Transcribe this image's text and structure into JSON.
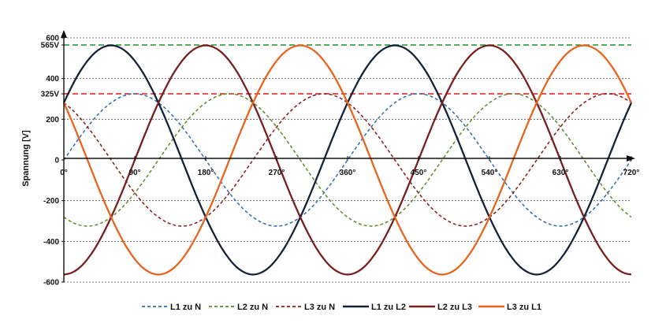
{
  "chart_data": {
    "type": "line",
    "title": "",
    "xlabel": "",
    "ylabel": "Spannung [V]",
    "x": [
      0,
      10,
      20,
      30,
      40,
      50,
      60,
      70,
      80,
      90,
      100,
      110,
      120,
      130,
      140,
      150,
      160,
      170,
      180,
      190,
      200,
      210,
      220,
      230,
      240,
      250,
      260,
      270,
      280,
      290,
      300,
      310,
      320,
      330,
      340,
      350,
      360,
      370,
      380,
      390,
      400,
      410,
      420,
      430,
      440,
      450,
      460,
      470,
      480,
      490,
      500,
      510,
      520,
      530,
      540,
      550,
      560,
      570,
      580,
      590,
      600,
      610,
      620,
      630,
      640,
      650,
      660,
      670,
      680,
      690,
      700,
      710,
      720
    ],
    "xlim": [
      0,
      720
    ],
    "ylim": [
      -600,
      600
    ],
    "x_ticks": [
      {
        "value": 0,
        "label": "0°"
      },
      {
        "value": 90,
        "label": "90°"
      },
      {
        "value": 180,
        "label": "180°"
      },
      {
        "value": 270,
        "label": "270°"
      },
      {
        "value": 360,
        "label": "360°"
      },
      {
        "value": 450,
        "label": "450°"
      },
      {
        "value": 540,
        "label": "540°"
      },
      {
        "value": 630,
        "label": "630°"
      },
      {
        "value": 720,
        "label": "720°"
      }
    ],
    "y_ticks": [
      {
        "value": 600,
        "label": "600"
      },
      {
        "value": 565,
        "label": "565V"
      },
      {
        "value": 400,
        "label": "400"
      },
      {
        "value": 325,
        "label": "325V"
      },
      {
        "value": 200,
        "label": "200"
      },
      {
        "value": 0,
        "label": "0"
      },
      {
        "value": -200,
        "label": "-200"
      },
      {
        "value": -400,
        "label": "-400"
      },
      {
        "value": -600,
        "label": "-600"
      }
    ],
    "reference_lines": [
      {
        "value": 565,
        "color": "#2a9d3a"
      },
      {
        "value": 325,
        "color": "#e8262a"
      }
    ],
    "grid": "horizontal dotted",
    "legend_position": "bottom",
    "series": [
      {
        "name": "L1 zu N",
        "color": "#2e6bb5",
        "dash": "dashed",
        "values": [
          0,
          56,
          111,
          162,
          209,
          249,
          281,
          305,
          320,
          325,
          320,
          305,
          281,
          249,
          209,
          162,
          111,
          56,
          0,
          -56,
          -111,
          -162,
          -209,
          -249,
          -281,
          -305,
          -320,
          -325,
          -320,
          -305,
          -281,
          -249,
          -209,
          -162,
          -111,
          -56,
          0,
          56,
          111,
          162,
          209,
          249,
          281,
          305,
          320,
          325,
          320,
          305,
          281,
          249,
          209,
          162,
          111,
          56,
          0,
          -56,
          -111,
          -162,
          -209,
          -249,
          -281,
          -305,
          -320,
          -325,
          -320,
          -305,
          -281,
          -249,
          -209,
          -162,
          -111,
          -56,
          0
        ]
      },
      {
        "name": "L2 zu N",
        "color": "#5e8c2a",
        "dash": "dashed",
        "values": [
          -281,
          -305,
          -320,
          -325,
          -320,
          -305,
          -281,
          -249,
          -209,
          -162,
          -111,
          -56,
          0,
          56,
          111,
          162,
          209,
          249,
          281,
          305,
          320,
          325,
          320,
          305,
          281,
          249,
          209,
          162,
          111,
          56,
          0,
          -56,
          -111,
          -162,
          -209,
          -249,
          -281,
          -305,
          -320,
          -325,
          -320,
          -305,
          -281,
          -249,
          -209,
          -162,
          -111,
          -56,
          0,
          56,
          111,
          162,
          209,
          249,
          281,
          305,
          320,
          325,
          320,
          305,
          281,
          249,
          209,
          162,
          111,
          56,
          0,
          -56,
          -111,
          -162,
          -209,
          -249,
          -281
        ]
      },
      {
        "name": "L3 zu N",
        "color": "#8b1a1a",
        "dash": "dashed",
        "values": [
          281,
          249,
          209,
          162,
          111,
          56,
          0,
          -56,
          -111,
          -162,
          -209,
          -249,
          -281,
          -305,
          -320,
          -325,
          -320,
          -305,
          -281,
          -249,
          -209,
          -162,
          -111,
          -56,
          0,
          56,
          111,
          162,
          209,
          249,
          281,
          305,
          320,
          325,
          320,
          305,
          281,
          249,
          209,
          162,
          111,
          56,
          0,
          -56,
          -111,
          -162,
          -209,
          -249,
          -281,
          -305,
          -320,
          -325,
          -320,
          -305,
          -281,
          -249,
          -209,
          -162,
          -111,
          -56,
          0,
          56,
          111,
          162,
          209,
          249,
          281,
          305,
          320,
          325,
          320,
          305,
          281
        ]
      },
      {
        "name": "L1 zu L2",
        "color": "#152238",
        "dash": "solid",
        "values": [
          281,
          361,
          431,
          487,
          529,
          554,
          563,
          554,
          529,
          487,
          431,
          361,
          281,
          193,
          98,
          0,
          -98,
          -193,
          -281,
          -361,
          -431,
          -487,
          -529,
          -554,
          -563,
          -554,
          -529,
          -487,
          -431,
          -361,
          -281,
          -193,
          -98,
          0,
          98,
          193,
          281,
          361,
          431,
          487,
          529,
          554,
          563,
          554,
          529,
          487,
          431,
          361,
          281,
          193,
          98,
          0,
          -98,
          -193,
          -281,
          -361,
          -431,
          -487,
          -529,
          -554,
          -563,
          -554,
          -529,
          -487,
          -431,
          -361,
          -281,
          -193,
          -98,
          0,
          98,
          193,
          281
        ]
      },
      {
        "name": "L2 zu L3",
        "color": "#7a1f1f",
        "dash": "solid",
        "values": [
          -563,
          -554,
          -529,
          -487,
          -431,
          -361,
          -281,
          -193,
          -98,
          0,
          98,
          193,
          281,
          361,
          431,
          487,
          529,
          554,
          563,
          554,
          529,
          487,
          431,
          361,
          281,
          193,
          98,
          0,
          -98,
          -193,
          -281,
          -361,
          -431,
          -487,
          -529,
          -554,
          -563,
          -554,
          -529,
          -487,
          -431,
          -361,
          -281,
          -193,
          -98,
          0,
          98,
          193,
          281,
          361,
          431,
          487,
          529,
          554,
          563,
          554,
          529,
          487,
          431,
          361,
          281,
          193,
          98,
          0,
          -98,
          -193,
          -281,
          -361,
          -431,
          -487,
          -529,
          -554,
          -563
        ]
      },
      {
        "name": "L3 zu L1",
        "color": "#e8641e",
        "dash": "solid",
        "values": [
          281,
          193,
          98,
          0,
          -98,
          -193,
          -281,
          -361,
          -431,
          -487,
          -529,
          -554,
          -563,
          -554,
          -529,
          -487,
          -431,
          -361,
          -281,
          -193,
          -98,
          0,
          98,
          193,
          281,
          361,
          431,
          487,
          529,
          554,
          563,
          554,
          529,
          487,
          431,
          361,
          281,
          193,
          98,
          0,
          -98,
          -193,
          -281,
          -361,
          -431,
          -487,
          -529,
          -554,
          -563,
          -554,
          -529,
          -487,
          -431,
          -361,
          -281,
          -193,
          -98,
          0,
          98,
          193,
          281,
          361,
          431,
          487,
          529,
          554,
          563,
          554,
          529,
          487,
          431,
          361,
          281
        ]
      }
    ]
  }
}
